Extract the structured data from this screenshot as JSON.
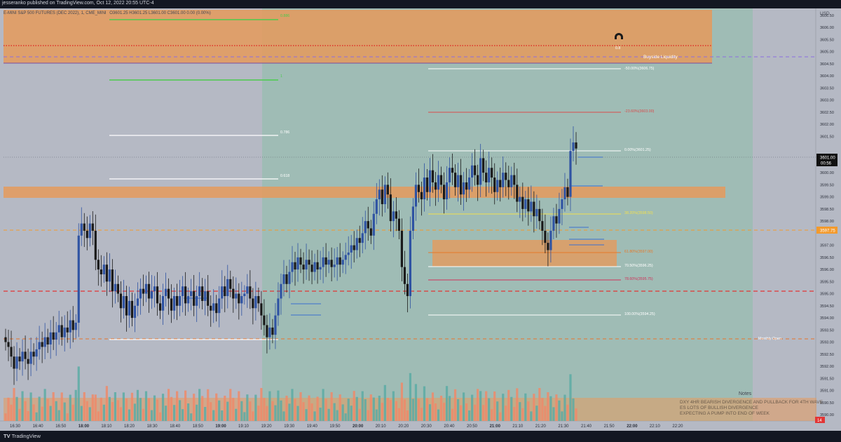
{
  "header": {
    "publisher_line": "jesseranko published on TradingView.com, Oct 12, 2022 20:55 UTC-4"
  },
  "legend": {
    "symbol": "E-MINI S&P 500 FUTURES (DEC 2022), 1, CME_MINI",
    "ohlc": "O3601.25  H3601.25  L3601.00  C3601.00  0.00 (0.00%)"
  },
  "colors": {
    "up_candle": "#2f53a3",
    "down_candle": "#1a1a1a",
    "zone": "#e59a5c",
    "bg_gray": "#b5b9c4",
    "bg_green": "#9fbcb5",
    "vol_up": "#5aaca4",
    "vol_down": "#ee8a6a"
  },
  "chart_data": {
    "type": "candlestick",
    "title": "",
    "xlabel": "",
    "ylabel": "",
    "unit": "USD",
    "ylim": [
      3589.5,
      3607.2
    ],
    "x_tick_labels": [
      "16:30",
      "16:40",
      "16:50",
      "18:00",
      "18:10",
      "18:20",
      "18:30",
      "18:40",
      "18:50",
      "19:00",
      "19:10",
      "19:20",
      "19:30",
      "19:40",
      "19:50",
      "20:00",
      "20:10",
      "20:20",
      "20:30",
      "20:40",
      "20:50",
      "21:00",
      "21:10",
      "21:20",
      "21:30",
      "21:40",
      "21:50",
      "22:00",
      "22:10",
      "22:20"
    ],
    "y_tick_labels": [
      "3606.50",
      "3606.00",
      "3605.50",
      "3605.00",
      "3604.50",
      "3604.00",
      "3603.50",
      "3603.00",
      "3602.50",
      "3602.00",
      "3601.50",
      "3600.50",
      "3600.00",
      "3599.50",
      "3599.00",
      "3598.50",
      "3598.00",
      "3597.00",
      "3596.50",
      "3596.00",
      "3595.50",
      "3595.00",
      "3594.50",
      "3594.00",
      "3593.50",
      "3593.00",
      "3592.50",
      "3592.00",
      "3591.50",
      "3591.00",
      "3590.50",
      "3590.00"
    ],
    "price_labels": {
      "last": "3601.00",
      "countdown": "00:56",
      "dashed_level": "3597.75"
    },
    "bottom_badge": "14",
    "candles_close": [
      3593.0,
      3592.8,
      3592.4,
      3591.9,
      3592.4,
      3592.2,
      3592.6,
      3592.3,
      3592.1,
      3592.6,
      3592.4,
      3592.7,
      3593.0,
      3592.8,
      3593.2,
      3592.9,
      3593.4,
      3593.1,
      3593.4,
      3593.7,
      3593.2,
      3593.6,
      3593.4,
      3593.9,
      3593.5,
      3593.8,
      3597.4,
      3597.9,
      3597.6,
      3597.3,
      3597.9,
      3597.6,
      3596.4,
      3596.0,
      3595.8,
      3596.2,
      3595.5,
      3596.0,
      3595.1,
      3595.4,
      3595.0,
      3594.4,
      3594.9,
      3594.1,
      3594.7,
      3594.0,
      3594.5,
      3594.8,
      3595.2,
      3595.0,
      3595.4,
      3594.8,
      3595.1,
      3595.3,
      3594.6,
      3594.3,
      3594.9,
      3595.2,
      3594.8,
      3594.3,
      3594.9,
      3594.5,
      3594.9,
      3595.3,
      3594.6,
      3594.9,
      3595.1,
      3594.5,
      3594.9,
      3595.3,
      3594.7,
      3595.1,
      3594.5,
      3594.3,
      3594.6,
      3594.2,
      3594.8,
      3595.3,
      3594.9,
      3595.6,
      3595.2,
      3594.8,
      3595.0,
      3594.6,
      3594.9,
      3595.0,
      3595.3,
      3594.8,
      3594.4,
      3594.9,
      3594.6,
      3594.1,
      3593.7,
      3593.2,
      3593.6,
      3593.3,
      3594.1,
      3594.8,
      3595.4,
      3595.8,
      3595.4,
      3595.9,
      3596.3,
      3596.0,
      3596.5,
      3596.2,
      3596.0,
      3596.4,
      3596.2,
      3595.9,
      3596.3,
      3596.0,
      3596.1,
      3596.5,
      3596.2,
      3596.4,
      3596.1,
      3596.2,
      3596.5,
      3596.2,
      3596.4,
      3596.6,
      3596.7,
      3597.0,
      3596.8,
      3597.3,
      3597.1,
      3597.5,
      3598.0,
      3597.7,
      3597.4,
      3598.3,
      3598.9,
      3599.3,
      3598.7,
      3599.5,
      3599.1,
      3598.0,
      3598.4,
      3598.1,
      3597.6,
      3596.1,
      3595.4,
      3594.9,
      3597.6,
      3598.6,
      3599.5,
      3599.2,
      3598.9,
      3599.8,
      3599.2,
      3600.1,
      3599.6,
      3599.3,
      3599.9,
      3599.5,
      3598.9,
      3599.6,
      3600.2,
      3600.0,
      3599.4,
      3599.9,
      3599.1,
      3599.6,
      3599.3,
      3599.8,
      3600.3,
      3599.9,
      3599.5,
      3600.6,
      3600.0,
      3599.6,
      3600.2,
      3599.8,
      3599.2,
      3599.7,
      3599.4,
      3600.0,
      3599.7,
      3599.4,
      3599.9,
      3599.5,
      3598.8,
      3599.0,
      3598.5,
      3598.9,
      3598.4,
      3598.8,
      3598.2,
      3598.5,
      3598.0,
      3597.6,
      3597.1,
      3596.8,
      3597.6,
      3598.2,
      3597.9,
      3598.5,
      3598.9,
      3599.4,
      3599.0,
      3600.9,
      3601.25,
      3601.0
    ]
  },
  "price_axis": {
    "top_label": "USD"
  },
  "levels": {
    "zone_lines": [
      {
        "label": "0.886",
        "color": "#4ccb4c"
      },
      {
        "label": "1",
        "color": "#4ccb4c"
      },
      {
        "label": "0.786",
        "color": "#ffffff"
      },
      {
        "label": "0.618",
        "color": "#ffffff"
      }
    ],
    "fib": [
      {
        "label": "-50.00%(3606.75)",
        "color": "#ffffff"
      },
      {
        "label": "-23.60%(3603.00)",
        "color": "#d94b4b"
      },
      {
        "label": "0.00%(3601.25)",
        "color": "#ffffff"
      },
      {
        "label": "38.20%(3598.50)",
        "color": "#f1e04f"
      },
      {
        "label": "61.80%(3597.00)",
        "color": "#e6792a"
      },
      {
        "label": "70.50%(3596.25)",
        "color": "#ffffff"
      },
      {
        "label": "78.60%(3595.75)",
        "color": "#d0325a"
      },
      {
        "label": "100.00%(3594.25)",
        "color": "#ffffff"
      }
    ],
    "buyside_liquidity": "Buyside Liquidity",
    "ote_label": "0.8",
    "monthly_open": "Monthly Open"
  },
  "notes": {
    "title": "Notes",
    "lines": [
      "DXY 4HR BEARISH DIVERGENCE AND PULLBACK FOR 4TH WAVE",
      "ES LOTS OF BULLISH DIVERGENCE",
      "EXPECTING A PUMP INTO END OF WEEK"
    ]
  },
  "footer": {
    "logo_text": "TradingView"
  }
}
